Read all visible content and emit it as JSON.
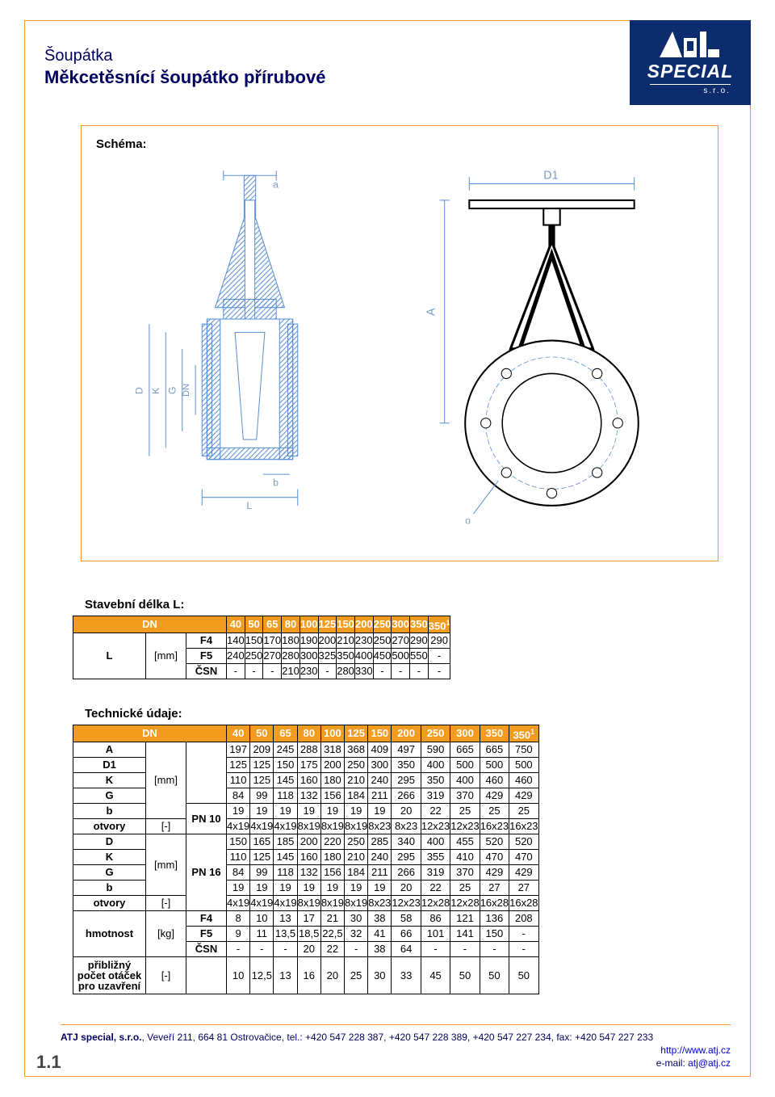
{
  "header": {
    "supertitle": "Šoupátka",
    "title": "Měkcetěsnící šoupátko přírubové"
  },
  "logo": {
    "brand": "SPECIAL",
    "sro": "s.r.o."
  },
  "schema": {
    "label": "Schéma:"
  },
  "table1": {
    "title": "Stavební délka L:",
    "headerLabel": "DN",
    "dn": [
      "40",
      "50",
      "65",
      "80",
      "100",
      "125",
      "150",
      "200",
      "250",
      "300",
      "350",
      "350"
    ],
    "rowLabel": "L",
    "rowUnit": "[mm]",
    "subs": [
      "F4",
      "F5",
      "ČSN"
    ],
    "rows": [
      [
        "140",
        "150",
        "170",
        "180",
        "190",
        "200",
        "210",
        "230",
        "250",
        "270",
        "290",
        "290"
      ],
      [
        "240",
        "250",
        "270",
        "280",
        "300",
        "325",
        "350",
        "400",
        "450",
        "500",
        "550",
        "-"
      ],
      [
        "-",
        "-",
        "-",
        "210",
        "230",
        "-",
        "280",
        "330",
        "-",
        "-",
        "-",
        "-"
      ]
    ]
  },
  "table2": {
    "title": "Technické údaje:",
    "headerLabel": "DN",
    "dn": [
      "40",
      "50",
      "65",
      "80",
      "100",
      "125",
      "150",
      "200",
      "250",
      "300",
      "350",
      "350"
    ],
    "block1": {
      "pn": "PN 10",
      "rows": [
        {
          "l": "A",
          "u": "",
          "v": [
            "197",
            "209",
            "245",
            "288",
            "318",
            "368",
            "409",
            "497",
            "590",
            "665",
            "665",
            "750"
          ]
        },
        {
          "l": "D1",
          "u": "",
          "v": [
            "125",
            "125",
            "150",
            "175",
            "200",
            "250",
            "300",
            "350",
            "400",
            "500",
            "500",
            "500"
          ]
        },
        {
          "l": "K",
          "u": "[mm]",
          "v": [
            "110",
            "125",
            "145",
            "160",
            "180",
            "210",
            "240",
            "295",
            "350",
            "400",
            "460",
            "460"
          ]
        },
        {
          "l": "G",
          "u": "",
          "v": [
            "84",
            "99",
            "118",
            "132",
            "156",
            "184",
            "211",
            "266",
            "319",
            "370",
            "429",
            "429"
          ]
        },
        {
          "l": "b",
          "u": "",
          "v": [
            "19",
            "19",
            "19",
            "19",
            "19",
            "19",
            "19",
            "20",
            "22",
            "25",
            "25",
            "25"
          ]
        },
        {
          "l": "otvory",
          "u": "[-]",
          "v": [
            "4x19",
            "4x19",
            "4x19",
            "8x19",
            "8x19",
            "8x19",
            "8x23",
            "8x23",
            "12x23",
            "12x23",
            "16x23",
            "16x23"
          ]
        }
      ]
    },
    "block2": {
      "pn": "PN 16",
      "rows": [
        {
          "l": "D",
          "u": "",
          "v": [
            "150",
            "165",
            "185",
            "200",
            "220",
            "250",
            "285",
            "340",
            "400",
            "455",
            "520",
            "520"
          ]
        },
        {
          "l": "K",
          "u": "[mm]",
          "v": [
            "110",
            "125",
            "145",
            "160",
            "180",
            "210",
            "240",
            "295",
            "355",
            "410",
            "470",
            "470"
          ]
        },
        {
          "l": "G",
          "u": "",
          "v": [
            "84",
            "99",
            "118",
            "132",
            "156",
            "184",
            "211",
            "266",
            "319",
            "370",
            "429",
            "429"
          ]
        },
        {
          "l": "b",
          "u": "",
          "v": [
            "19",
            "19",
            "19",
            "19",
            "19",
            "19",
            "19",
            "20",
            "22",
            "25",
            "27",
            "27"
          ]
        },
        {
          "l": "otvory",
          "u": "[-]",
          "v": [
            "4x19",
            "4x19",
            "4x19",
            "8x19",
            "8x19",
            "8x19",
            "8x23",
            "12x23",
            "12x28",
            "12x28",
            "16x28",
            "16x28"
          ]
        }
      ]
    },
    "hmotnost": {
      "label": "hmotnost",
      "unit": "[kg]",
      "subs": [
        "F4",
        "F5",
        "ČSN"
      ],
      "rows": [
        [
          "8",
          "10",
          "13",
          "17",
          "21",
          "30",
          "38",
          "58",
          "86",
          "121",
          "136",
          "208"
        ],
        [
          "9",
          "11",
          "13,5",
          "18,5",
          "22,5",
          "32",
          "41",
          "66",
          "101",
          "141",
          "150",
          "-"
        ],
        [
          "-",
          "-",
          "-",
          "20",
          "22",
          "-",
          "38",
          "64",
          "-",
          "-",
          "-",
          "-"
        ]
      ]
    },
    "turns": {
      "label": "přibližný počet otáček pro uzavření",
      "unit": "[-]",
      "v": [
        "10",
        "12,5",
        "13",
        "16",
        "20",
        "25",
        "30",
        "33",
        "45",
        "50",
        "50",
        "50"
      ]
    }
  },
  "footer": {
    "company": "ATJ special, s.r.o.",
    "addr": ", Veveří 211, 664 81 Ostrovačice,  tel.: +420 547 228 387, +420 547 228 389, +420 547 227 234, fax: +420 547 227 233",
    "web": "http://www.atj.cz",
    "email_label": "e-mail: ",
    "email": "atj@atj.cz"
  },
  "pagenum": "1.1",
  "colors": {
    "accent": "#e89a2a",
    "tableHeader": "#f29c1f",
    "brandBg": "#0d2c6e",
    "title": "#000060"
  }
}
